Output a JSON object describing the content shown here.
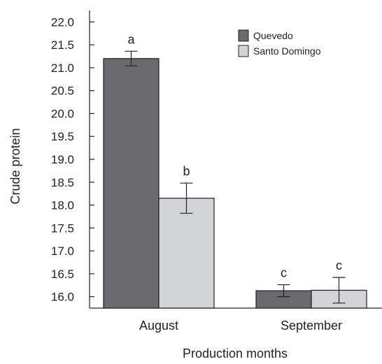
{
  "chart_data": {
    "type": "bar",
    "xlabel": "Production months",
    "ylabel": "Crude protein",
    "ylim": [
      15.75,
      22.25
    ],
    "yticks": [
      "22.0",
      "21.5",
      "21.0",
      "20.5",
      "20.0",
      "19.5",
      "19.0",
      "18.5",
      "18.0",
      "17.5",
      "17.0",
      "16.5",
      "16.0"
    ],
    "categories": [
      "August",
      "September"
    ],
    "legend_position": "top-right",
    "series": [
      {
        "name": "Quevedo",
        "color": "#6b6b6e",
        "values": [
          21.2,
          16.13
        ],
        "errors": [
          0.16,
          0.13
        ],
        "letters": [
          "a",
          "c"
        ]
      },
      {
        "name": "Santo Domingo",
        "color": "#d3d4d6",
        "values": [
          18.15,
          16.14
        ],
        "errors": [
          0.33,
          0.28
        ],
        "letters": [
          "b",
          "c"
        ]
      }
    ],
    "grid": false
  }
}
